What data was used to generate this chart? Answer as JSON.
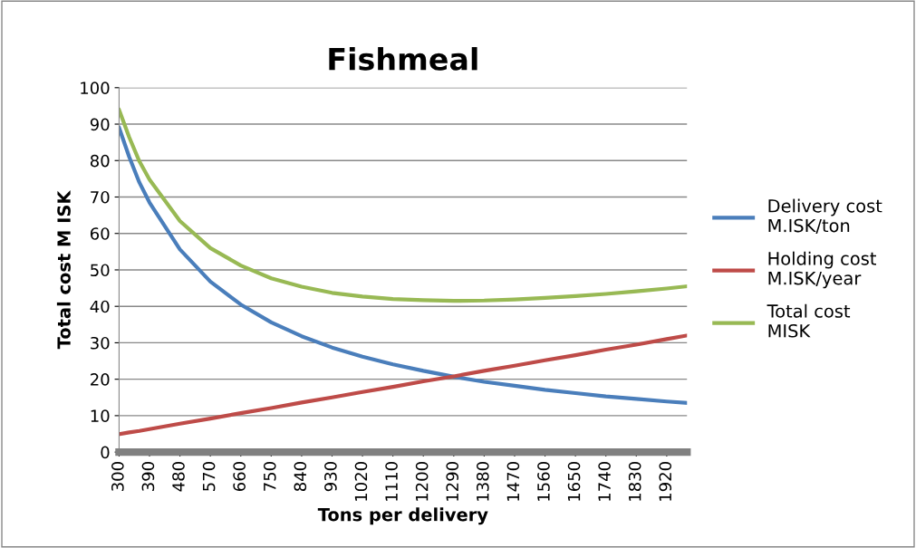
{
  "chart_data": {
    "type": "line",
    "title": "Fishmeal",
    "xlabel": "Tons per delivery",
    "ylabel": "Total cost M ISK",
    "x": [
      300,
      330,
      360,
      390,
      480,
      570,
      660,
      750,
      840,
      930,
      1020,
      1110,
      1200,
      1290,
      1380,
      1470,
      1560,
      1650,
      1740,
      1830,
      1920,
      1980
    ],
    "series": [
      {
        "name": "Delivery cost M.ISK/ton",
        "color": "#4a7ebb",
        "values": [
          89,
          81,
          74,
          68.5,
          55.6,
          46.8,
          40.5,
          35.6,
          31.8,
          28.7,
          26.2,
          24.1,
          22.3,
          20.7,
          19.3,
          18.2,
          17.1,
          16.2,
          15.3,
          14.6,
          13.9,
          13.5
        ]
      },
      {
        "name": "Holding cost M.ISK/year",
        "color": "#be4b48",
        "values": [
          4.9,
          5.4,
          5.8,
          6.3,
          7.8,
          9.2,
          10.7,
          12.1,
          13.6,
          15.0,
          16.5,
          17.9,
          19.4,
          20.8,
          22.3,
          23.7,
          25.2,
          26.6,
          28.1,
          29.5,
          31.0,
          32.0
        ]
      },
      {
        "name": "Total cost MISK",
        "color": "#98b954",
        "values": [
          93.9,
          86.4,
          79.8,
          74.8,
          63.4,
          56.0,
          51.2,
          47.7,
          45.4,
          43.7,
          42.7,
          42.0,
          41.7,
          41.5,
          41.6,
          41.9,
          42.3,
          42.8,
          43.4,
          44.1,
          44.9,
          45.5
        ]
      }
    ],
    "xlim": [
      300,
      1980
    ],
    "xticks": [
      300,
      390,
      480,
      570,
      660,
      750,
      840,
      930,
      1020,
      1110,
      1200,
      1290,
      1380,
      1470,
      1560,
      1650,
      1740,
      1830,
      1920
    ],
    "ylim": [
      0,
      100
    ],
    "yticks": [
      0,
      10,
      20,
      30,
      40,
      50,
      60,
      70,
      80,
      90,
      100
    ],
    "grid": "y",
    "legend": "right",
    "marker": "none",
    "line_style": "solid"
  }
}
